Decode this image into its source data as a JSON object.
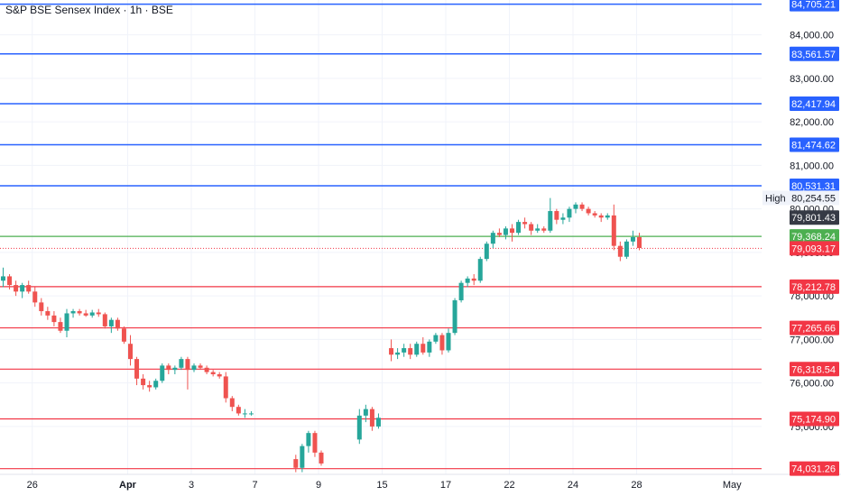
{
  "header": {
    "title": "S&P BSE Sensex Index · 1h · BSE"
  },
  "colors": {
    "up": "#26a69a",
    "down": "#ef5350",
    "resistance": "#2962ff",
    "support": "#f23645",
    "current": "#4caf50",
    "axis_text": "#131722"
  },
  "chart_data": {
    "type": "candlestick",
    "ylim": [
      73900,
      84800
    ],
    "y_ticks": [
      {
        "value": 75000,
        "label": "75,000.00"
      },
      {
        "value": 76000,
        "label": "76,000.00"
      },
      {
        "value": 77000,
        "label": "77,000.00"
      },
      {
        "value": 78000,
        "label": "78,000.00"
      },
      {
        "value": 79000,
        "label": "79,000.00"
      },
      {
        "value": 80000,
        "label": "80,000.00"
      },
      {
        "value": 81000,
        "label": "81,000.00"
      },
      {
        "value": 82000,
        "label": "82,000.00"
      },
      {
        "value": 83000,
        "label": "83,000.00"
      },
      {
        "value": 84000,
        "label": "84,000.00"
      }
    ],
    "x_ticks": [
      {
        "label": "26",
        "slot": 5
      },
      {
        "label": "Apr",
        "slot": 20,
        "bold": true
      },
      {
        "label": "3",
        "slot": 30
      },
      {
        "label": "7",
        "slot": 40
      },
      {
        "label": "9",
        "slot": 50
      },
      {
        "label": "15",
        "slot": 60
      },
      {
        "label": "17",
        "slot": 70
      },
      {
        "label": "22",
        "slot": 80
      },
      {
        "label": "24",
        "slot": 90
      },
      {
        "label": "28",
        "slot": 100
      },
      {
        "label": "May",
        "slot": 115
      }
    ],
    "resistance_levels": [
      {
        "value": 84705.21,
        "label": "84,705.21"
      },
      {
        "value": 83561.57,
        "label": "83,561.57"
      },
      {
        "value": 82417.94,
        "label": "82,417.94"
      },
      {
        "value": 81474.62,
        "label": "81,474.62"
      },
      {
        "value": 80531.31,
        "label": "80,531.31"
      }
    ],
    "support_levels": [
      {
        "value": 78212.78,
        "label": "78,212.78"
      },
      {
        "value": 77265.66,
        "label": "77,265.66"
      },
      {
        "value": 76318.54,
        "label": "76,318.54"
      },
      {
        "value": 75174.9,
        "label": "75,174.90"
      },
      {
        "value": 74031.26,
        "label": "74,031.26"
      }
    ],
    "current_line": {
      "value": 79368.24,
      "label": "79,368.24"
    },
    "last_price": {
      "value": 79093.17,
      "label": "79,093.17"
    },
    "high_marker": {
      "name": "High",
      "value": 80254.55,
      "label": "80,254.55"
    },
    "crosshair_price": {
      "value": 79801.43,
      "label": "79,801.43"
    },
    "candles": [
      [
        0,
        78350,
        78650,
        78200,
        78450
      ],
      [
        1,
        78450,
        78500,
        78150,
        78250
      ],
      [
        2,
        78250,
        78350,
        78000,
        78100
      ],
      [
        3,
        78100,
        78300,
        77950,
        78250
      ],
      [
        4,
        78250,
        78350,
        78050,
        78100
      ],
      [
        5,
        78100,
        78200,
        77750,
        77850
      ],
      [
        6,
        77850,
        77950,
        77550,
        77650
      ],
      [
        7,
        77650,
        77750,
        77450,
        77550
      ],
      [
        8,
        77550,
        77650,
        77300,
        77400
      ],
      [
        9,
        77400,
        77500,
        77150,
        77200
      ],
      [
        10,
        77200,
        77700,
        77050,
        77600
      ],
      [
        11,
        77600,
        77700,
        77500,
        77650
      ],
      [
        12,
        77650,
        77700,
        77550,
        77600
      ],
      [
        13,
        77600,
        77680,
        77520,
        77550
      ],
      [
        14,
        77550,
        77680,
        77500,
        77620
      ],
      [
        15,
        77620,
        77700,
        77520,
        77580
      ],
      [
        16,
        77580,
        77620,
        77250,
        77300
      ],
      [
        17,
        77300,
        77500,
        77150,
        77450
      ],
      [
        18,
        77450,
        77500,
        77200,
        77250
      ],
      [
        19,
        77250,
        77300,
        76900,
        76950
      ],
      [
        20,
        76900,
        77100,
        76400,
        76550
      ],
      [
        21,
        76550,
        76600,
        75950,
        76100
      ],
      [
        22,
        76100,
        76200,
        75850,
        75950
      ],
      [
        23,
        75950,
        76050,
        75800,
        75900
      ],
      [
        24,
        75900,
        76100,
        75850,
        76050
      ],
      [
        25,
        76050,
        76450,
        76000,
        76400
      ],
      [
        26,
        76400,
        76450,
        76200,
        76300
      ],
      [
        27,
        76300,
        76400,
        76200,
        76350
      ],
      [
        28,
        76350,
        76600,
        76300,
        76550
      ],
      [
        29,
        76550,
        76600,
        75850,
        76300
      ],
      [
        30,
        76300,
        76450,
        76250,
        76400
      ],
      [
        31,
        76400,
        76450,
        76300,
        76350
      ],
      [
        32,
        76350,
        76400,
        76200,
        76250
      ],
      [
        33,
        76250,
        76300,
        76150,
        76200
      ],
      [
        34,
        76200,
        76250,
        76100,
        76150
      ],
      [
        35,
        76150,
        76250,
        75550,
        75650
      ],
      [
        36,
        75650,
        75700,
        75350,
        75450
      ],
      [
        37,
        75450,
        75500,
        75250,
        75300
      ],
      [
        38,
        75300,
        75400,
        75200,
        75300
      ],
      [
        39,
        75300,
        75350,
        75250,
        75300
      ],
      [
        46,
        74250,
        74350,
        73950,
        74050
      ],
      [
        47,
        74050,
        74600,
        73950,
        74550
      ],
      [
        48,
        74550,
        74900,
        74400,
        74850
      ],
      [
        49,
        74850,
        74900,
        74300,
        74400
      ],
      [
        50,
        74400,
        74450,
        74100,
        74150
      ],
      [
        56,
        74700,
        75400,
        74600,
        75250
      ],
      [
        57,
        75250,
        75500,
        75100,
        75400
      ],
      [
        58,
        75400,
        75450,
        74900,
        75000
      ],
      [
        59,
        75000,
        75300,
        74950,
        75200
      ],
      [
        61,
        76800,
        77000,
        76500,
        76650
      ],
      [
        62,
        76650,
        76800,
        76550,
        76700
      ],
      [
        63,
        76700,
        76900,
        76600,
        76800
      ],
      [
        64,
        76800,
        76900,
        76550,
        76650
      ],
      [
        65,
        76650,
        76950,
        76600,
        76900
      ],
      [
        66,
        76900,
        77050,
        76650,
        76700
      ],
      [
        67,
        76700,
        77000,
        76600,
        76950
      ],
      [
        68,
        76950,
        77150,
        76900,
        77100
      ],
      [
        69,
        77100,
        77150,
        76650,
        76750
      ],
      [
        70,
        76750,
        77250,
        76700,
        77150
      ],
      [
        71,
        77150,
        77950,
        77100,
        77900
      ],
      [
        72,
        77900,
        78350,
        77850,
        78300
      ],
      [
        73,
        78300,
        78450,
        78200,
        78400
      ],
      [
        74,
        78400,
        78500,
        78250,
        78350
      ],
      [
        75,
        78350,
        78900,
        78300,
        78850
      ],
      [
        76,
        78850,
        79250,
        78800,
        79200
      ],
      [
        77,
        79200,
        79500,
        79100,
        79450
      ],
      [
        78,
        79450,
        79550,
        79350,
        79400
      ],
      [
        79,
        79400,
        79600,
        79300,
        79550
      ],
      [
        80,
        79550,
        79650,
        79250,
        79450
      ],
      [
        81,
        79450,
        79750,
        79400,
        79700
      ],
      [
        82,
        79700,
        79800,
        79550,
        79650
      ],
      [
        83,
        79650,
        79700,
        79400,
        79500
      ],
      [
        84,
        79500,
        79650,
        79450,
        79550
      ],
      [
        85,
        79550,
        79600,
        79450,
        79500
      ],
      [
        86,
        79500,
        80250,
        79450,
        79950
      ],
      [
        87,
        79950,
        80000,
        79650,
        79750
      ],
      [
        88,
        79750,
        79900,
        79650,
        79800
      ],
      [
        89,
        79800,
        80050,
        79700,
        80000
      ],
      [
        90,
        80000,
        80150,
        79900,
        80100
      ],
      [
        91,
        80100,
        80150,
        79950,
        80000
      ],
      [
        92,
        80000,
        80050,
        79850,
        79900
      ],
      [
        93,
        79900,
        79950,
        79800,
        79850
      ],
      [
        94,
        79850,
        79900,
        79700,
        79800
      ],
      [
        95,
        79800,
        79900,
        79750,
        79850
      ],
      [
        96,
        79850,
        80100,
        79050,
        79150
      ],
      [
        97,
        79150,
        79250,
        78800,
        78900
      ],
      [
        98,
        78900,
        79300,
        78850,
        79250
      ],
      [
        99,
        79250,
        79500,
        79150,
        79350
      ],
      [
        100,
        79350,
        79450,
        79050,
        79100
      ]
    ]
  }
}
